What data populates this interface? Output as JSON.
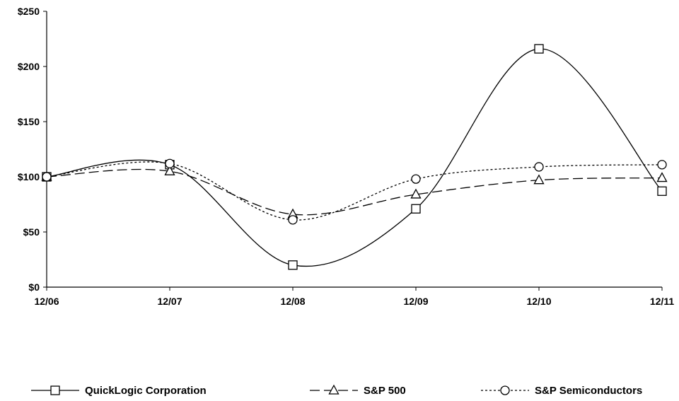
{
  "chart_data": {
    "type": "line",
    "categories": [
      "12/06",
      "12/07",
      "12/08",
      "12/09",
      "12/10",
      "12/11"
    ],
    "ylim": [
      0,
      250
    ],
    "y_ticks": [
      {
        "value": 0,
        "label": "$0"
      },
      {
        "value": 50,
        "label": "$50"
      },
      {
        "value": 100,
        "label": "$100"
      },
      {
        "value": 150,
        "label": "$150"
      },
      {
        "value": 200,
        "label": "$200"
      },
      {
        "value": 250,
        "label": "$250"
      }
    ],
    "grid": false,
    "legend_position": "bottom",
    "series": [
      {
        "name": "QuickLogic Corporation",
        "values": [
          100,
          111,
          20,
          71,
          216,
          87
        ],
        "marker": "square",
        "dash": "solid",
        "color": "#000000"
      },
      {
        "name": "S&P 500",
        "values": [
          100,
          105,
          66,
          84,
          97,
          99
        ],
        "marker": "triangle",
        "dash": "dashed",
        "color": "#000000"
      },
      {
        "name": "S&P Semiconductors",
        "values": [
          100,
          112,
          61,
          98,
          109,
          111
        ],
        "marker": "circle",
        "dash": "dotted",
        "color": "#000000"
      }
    ]
  }
}
